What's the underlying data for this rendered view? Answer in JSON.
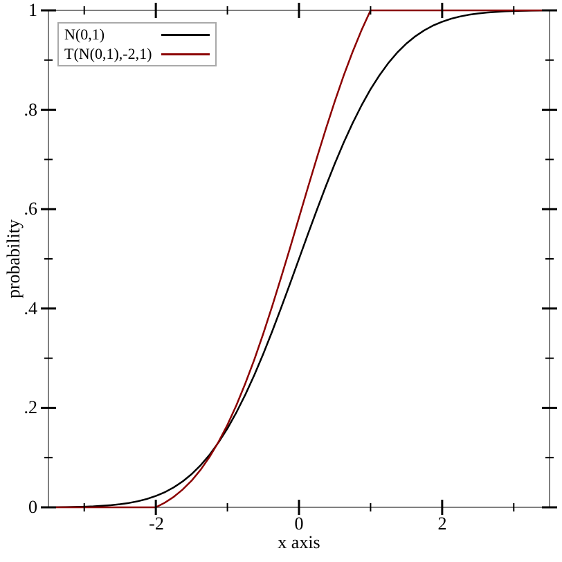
{
  "chart_data": {
    "type": "line",
    "title": "",
    "xlabel": "x axis",
    "ylabel": "probability",
    "xlim": [
      -3.5,
      3.5
    ],
    "ylim": [
      0,
      1
    ],
    "grid": false,
    "legend": {
      "position": "top-left",
      "entries": [
        {
          "label": "N(0,1)",
          "color": "#000000"
        },
        {
          "label": "T(N(0,1),-2,1)",
          "color": "#8b0000"
        }
      ]
    },
    "x_ticks_major": {
      "values": [
        -2,
        0,
        2
      ],
      "labels": [
        "-2",
        "0",
        "2"
      ]
    },
    "x_ticks_minor": [
      -3,
      -1,
      1,
      3
    ],
    "y_ticks_major": {
      "values": [
        0,
        0.2,
        0.4,
        0.6,
        0.8,
        1
      ],
      "labels": [
        "0",
        ".2",
        ".4",
        ".6",
        ".8",
        "1"
      ]
    },
    "y_ticks_minor": [
      0.1,
      0.3,
      0.5,
      0.7,
      0.9
    ],
    "colors": {
      "frame": "#808080",
      "tick": "#000000",
      "text": "#000000",
      "background": "#ffffff",
      "legend_border": "#a9a9a9"
    },
    "series": [
      {
        "name": "N(0,1)",
        "color": "#000000",
        "points": [
          [
            -3.5,
            0.0002
          ],
          [
            -3.375,
            0.0004
          ],
          [
            -3.25,
            0.0006
          ],
          [
            -3.125,
            0.0009
          ],
          [
            -3.0,
            0.0013
          ],
          [
            -2.875,
            0.002
          ],
          [
            -2.75,
            0.003
          ],
          [
            -2.625,
            0.0043
          ],
          [
            -2.5,
            0.0062
          ],
          [
            -2.375,
            0.0088
          ],
          [
            -2.25,
            0.0122
          ],
          [
            -2.125,
            0.0168
          ],
          [
            -2.0,
            0.0228
          ],
          [
            -1.875,
            0.0304
          ],
          [
            -1.75,
            0.0401
          ],
          [
            -1.625,
            0.0521
          ],
          [
            -1.5,
            0.0668
          ],
          [
            -1.375,
            0.0846
          ],
          [
            -1.25,
            0.1056
          ],
          [
            -1.125,
            0.1303
          ],
          [
            -1.0,
            0.1587
          ],
          [
            -0.875,
            0.1908
          ],
          [
            -0.75,
            0.2266
          ],
          [
            -0.625,
            0.266
          ],
          [
            -0.5,
            0.3085
          ],
          [
            -0.375,
            0.3538
          ],
          [
            -0.25,
            0.4013
          ],
          [
            -0.125,
            0.4503
          ],
          [
            0,
            0.5
          ],
          [
            0.125,
            0.5497
          ],
          [
            0.25,
            0.5987
          ],
          [
            0.375,
            0.6462
          ],
          [
            0.5,
            0.6915
          ],
          [
            0.625,
            0.734
          ],
          [
            0.75,
            0.7734
          ],
          [
            0.875,
            0.8092
          ],
          [
            1.0,
            0.8413
          ],
          [
            1.125,
            0.8697
          ],
          [
            1.25,
            0.8944
          ],
          [
            1.375,
            0.9154
          ],
          [
            1.5,
            0.9332
          ],
          [
            1.625,
            0.9479
          ],
          [
            1.75,
            0.9599
          ],
          [
            1.875,
            0.9696
          ],
          [
            2.0,
            0.9772
          ],
          [
            2.125,
            0.9832
          ],
          [
            2.25,
            0.9878
          ],
          [
            2.375,
            0.9912
          ],
          [
            2.5,
            0.9938
          ],
          [
            2.625,
            0.9957
          ],
          [
            2.75,
            0.997
          ],
          [
            2.875,
            0.998
          ],
          [
            3.0,
            0.9987
          ],
          [
            3.125,
            0.9991
          ],
          [
            3.25,
            0.9994
          ],
          [
            3.375,
            0.9996
          ],
          [
            3.5,
            0.9998
          ]
        ]
      },
      {
        "name": "T(N(0,1),-2,1)",
        "color": "#8b0000",
        "points": [
          [
            -3.5,
            0
          ],
          [
            -2.0,
            0
          ],
          [
            -1.875,
            0.0093
          ],
          [
            -1.75,
            0.0211
          ],
          [
            -1.625,
            0.0358
          ],
          [
            -1.5,
            0.0538
          ],
          [
            -1.375,
            0.0755
          ],
          [
            -1.25,
            0.1013
          ],
          [
            -1.125,
            0.1314
          ],
          [
            -1.0,
            0.166
          ],
          [
            -0.875,
            0.2053
          ],
          [
            -0.75,
            0.2491
          ],
          [
            -0.625,
            0.2971
          ],
          [
            -0.5,
            0.3491
          ],
          [
            -0.375,
            0.4044
          ],
          [
            -0.25,
            0.4624
          ],
          [
            -0.125,
            0.5222
          ],
          [
            0,
            0.583
          ],
          [
            0.125,
            0.6438
          ],
          [
            0.25,
            0.7036
          ],
          [
            0.375,
            0.7616
          ],
          [
            0.5,
            0.8169
          ],
          [
            0.625,
            0.8689
          ],
          [
            0.75,
            0.917
          ],
          [
            0.875,
            0.9607
          ],
          [
            1.0,
            1.0
          ],
          [
            3.5,
            1.0
          ]
        ]
      }
    ]
  }
}
